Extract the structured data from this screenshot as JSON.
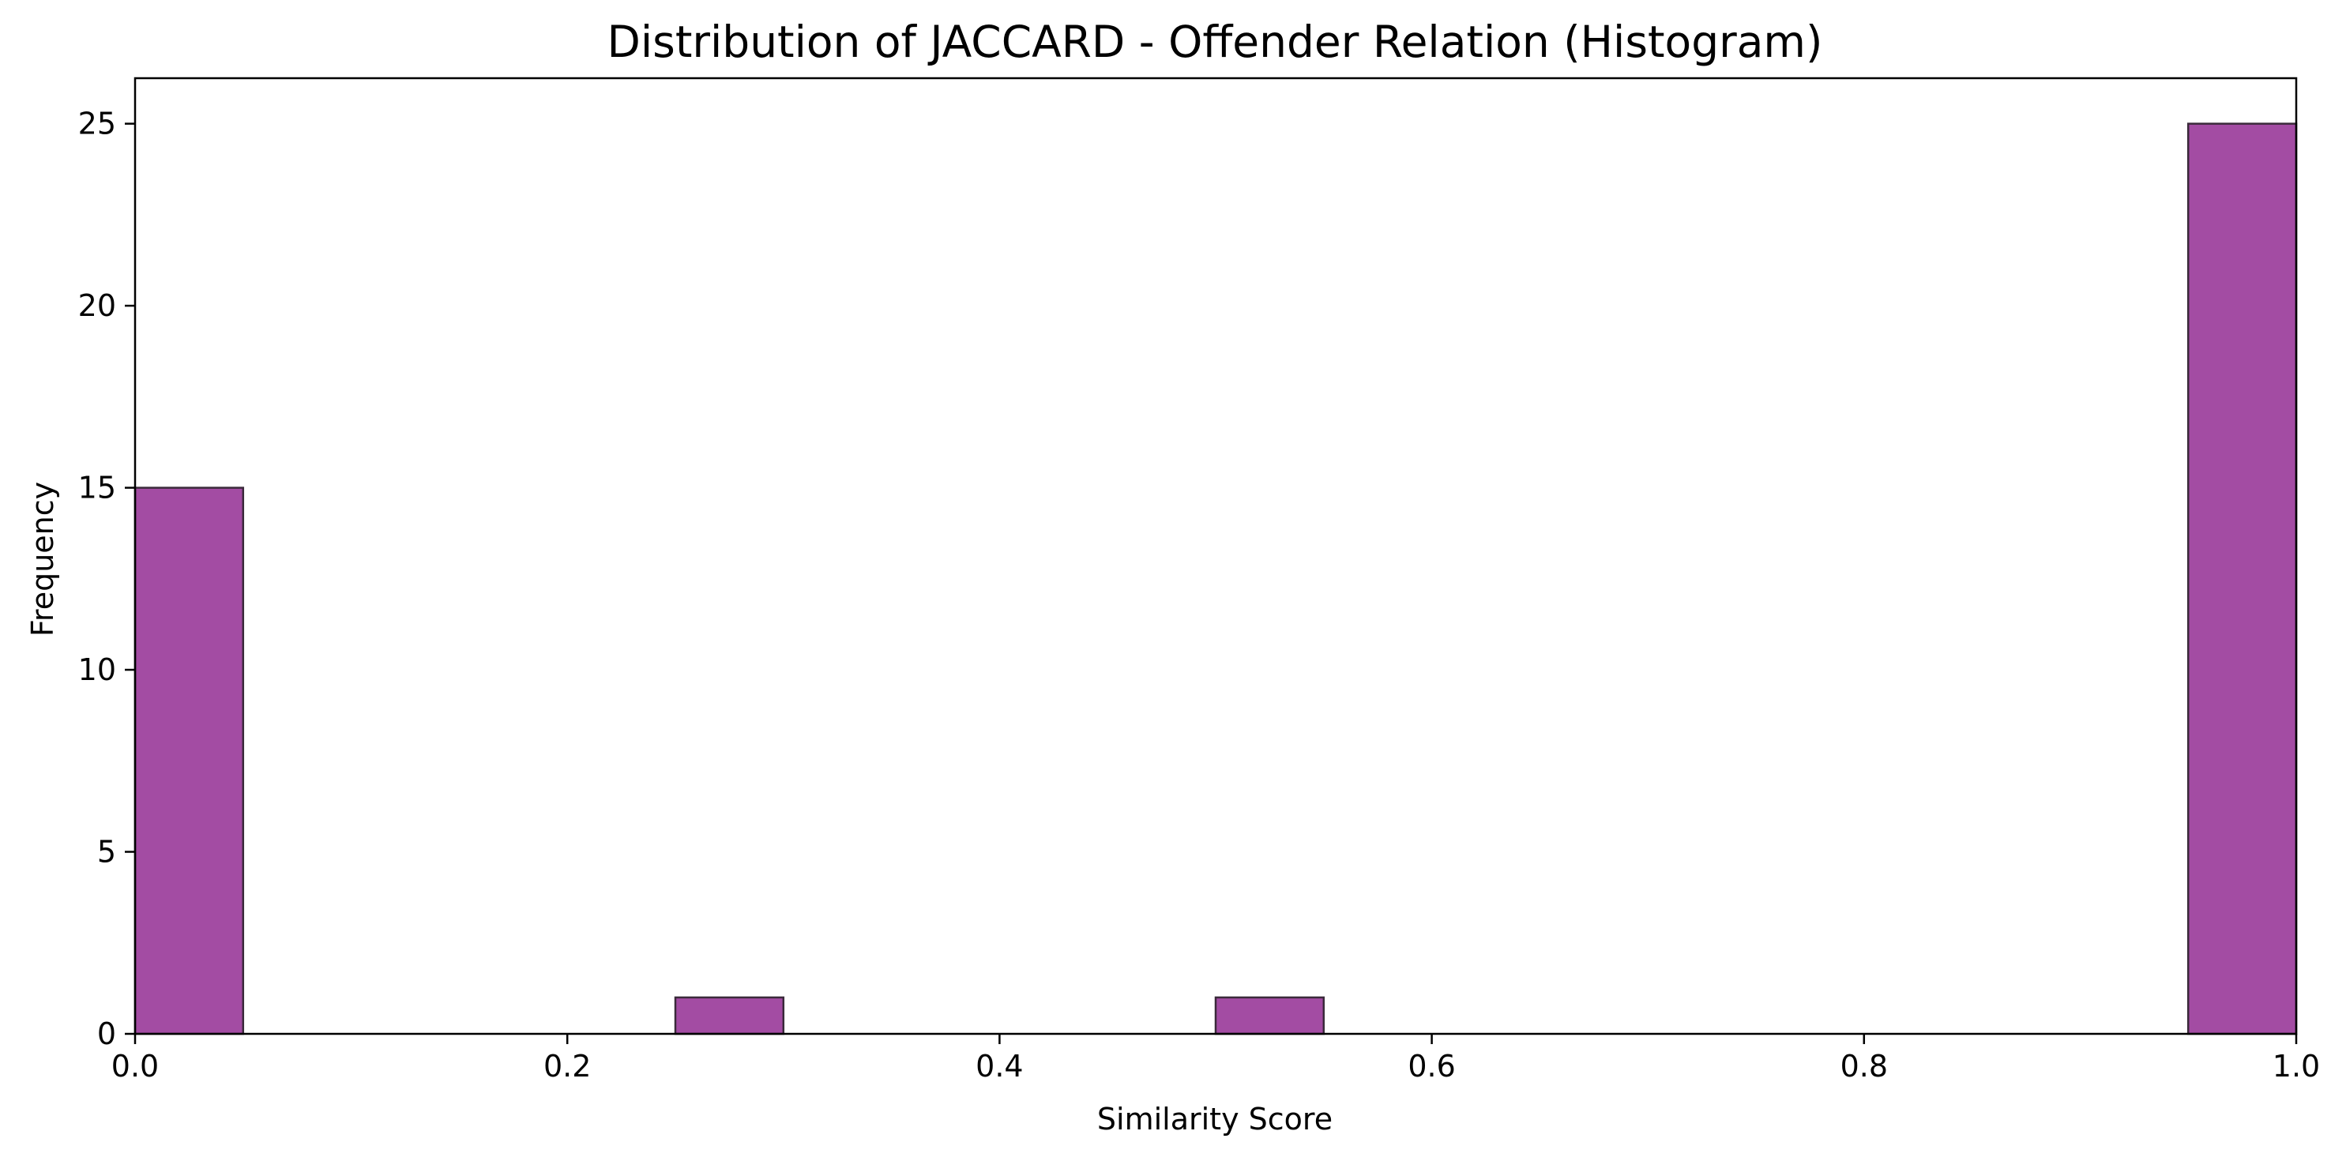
{
  "chart_data": {
    "type": "bar",
    "title": "Distribution of JACCARD - Offender Relation (Histogram)",
    "xlabel": "Similarity Score",
    "ylabel": "Frequency",
    "xlim": [
      0,
      1
    ],
    "ylim": [
      0,
      26.25
    ],
    "grid": false,
    "bin_width": 0.05,
    "bins": [
      {
        "start": 0.0,
        "end": 0.05,
        "count": 15
      },
      {
        "start": 0.25,
        "end": 0.3,
        "count": 1
      },
      {
        "start": 0.5,
        "end": 0.55,
        "count": 1
      },
      {
        "start": 0.95,
        "end": 1.0,
        "count": 25
      }
    ],
    "x_ticks": [
      {
        "value": 0.0,
        "label": "0.0"
      },
      {
        "value": 0.2,
        "label": "0.2"
      },
      {
        "value": 0.4,
        "label": "0.4"
      },
      {
        "value": 0.6,
        "label": "0.6"
      },
      {
        "value": 0.8,
        "label": "0.8"
      },
      {
        "value": 1.0,
        "label": "1.0"
      }
    ],
    "y_ticks": [
      {
        "value": 0,
        "label": "0"
      },
      {
        "value": 5,
        "label": "5"
      },
      {
        "value": 10,
        "label": "10"
      },
      {
        "value": 15,
        "label": "15"
      },
      {
        "value": 20,
        "label": "20"
      },
      {
        "value": 25,
        "label": "25"
      }
    ],
    "colors": {
      "bar_fill": "#a34ca3",
      "bar_edge": "#3a2a3a",
      "axis": "#000000"
    }
  }
}
